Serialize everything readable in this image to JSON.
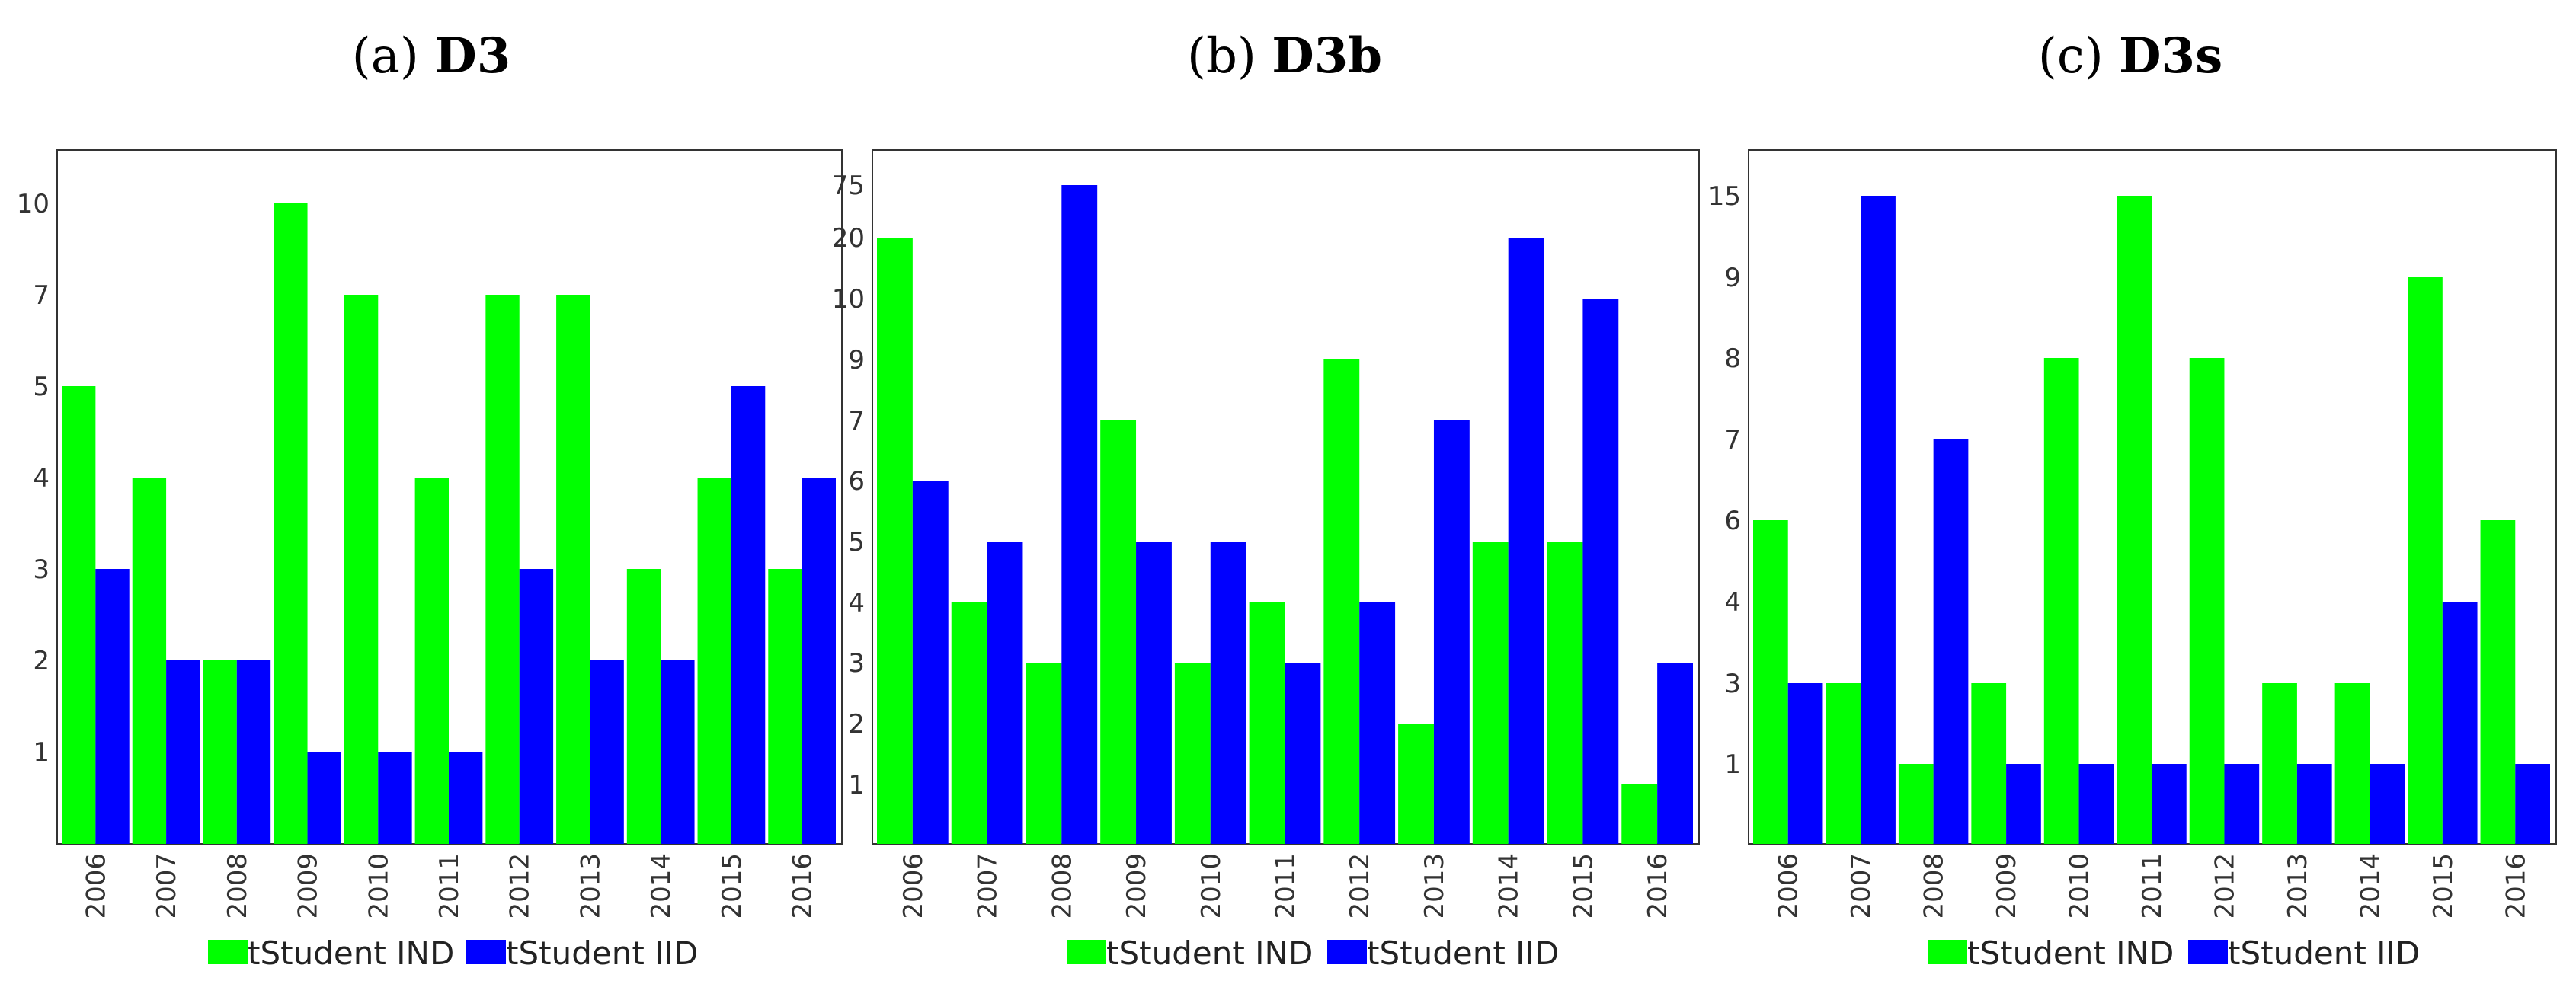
{
  "colors": {
    "ind": "#00ff00",
    "iid": "#0000ff",
    "frame": "#333333"
  },
  "chart_data": [
    {
      "type": "bar",
      "label": "(a)",
      "title": "D3",
      "categories": [
        "2006",
        "2007",
        "2008",
        "2009",
        "2010",
        "2011",
        "2012",
        "2013",
        "2014",
        "2015",
        "2016"
      ],
      "y_tick_labels": [
        "1",
        "2",
        "3",
        "4",
        "5",
        "7",
        "10"
      ],
      "y_scale": "ordinal (tick labels unevenly spaced values, evenly spaced positions)",
      "series": [
        {
          "name": "tStudent IND",
          "color": "#00ff00",
          "values": [
            5,
            4,
            2,
            10,
            7,
            4,
            7,
            7,
            3,
            4,
            3
          ]
        },
        {
          "name": "tStudent IID",
          "color": "#0000ff",
          "values": [
            3,
            2,
            2,
            1,
            1,
            1,
            3,
            2,
            2,
            5,
            4
          ]
        }
      ],
      "legend": "bottom-center",
      "grid": false
    },
    {
      "type": "bar",
      "label": "(b)",
      "title": "D3b",
      "categories": [
        "2006",
        "2007",
        "2008",
        "2009",
        "2010",
        "2011",
        "2012",
        "2013",
        "2014",
        "2015",
        "2016"
      ],
      "y_tick_labels": [
        "1",
        "2",
        "3",
        "4",
        "5",
        "6",
        "7",
        "9",
        "10",
        "20",
        "75"
      ],
      "y_scale": "ordinal (tick labels unevenly spaced values, evenly spaced positions)",
      "series": [
        {
          "name": "tStudent IND",
          "color": "#00ff00",
          "values": [
            20,
            4,
            3,
            7,
            3,
            4,
            9,
            2,
            5,
            5,
            1
          ]
        },
        {
          "name": "tStudent IID",
          "color": "#0000ff",
          "values": [
            6,
            5,
            75,
            5,
            5,
            3,
            4,
            7,
            20,
            10,
            3
          ]
        }
      ],
      "legend": "bottom-center",
      "grid": false
    },
    {
      "type": "bar",
      "label": "(c)",
      "title": "D3s",
      "categories": [
        "2006",
        "2007",
        "2008",
        "2009",
        "2010",
        "2011",
        "2012",
        "2013",
        "2014",
        "2015",
        "2016"
      ],
      "y_tick_labels": [
        "1",
        "3",
        "4",
        "6",
        "7",
        "8",
        "9",
        "15"
      ],
      "y_scale": "ordinal (tick labels unevenly spaced values, evenly spaced positions)",
      "series": [
        {
          "name": "tStudent IND",
          "color": "#00ff00",
          "values": [
            6,
            3,
            1,
            3,
            8,
            15,
            8,
            3,
            3,
            9,
            6
          ]
        },
        {
          "name": "tStudent IID",
          "color": "#0000ff",
          "values": [
            3,
            15,
            7,
            1,
            1,
            1,
            1,
            1,
            1,
            4,
            1
          ]
        }
      ],
      "legend": "bottom-center",
      "grid": false
    }
  ]
}
